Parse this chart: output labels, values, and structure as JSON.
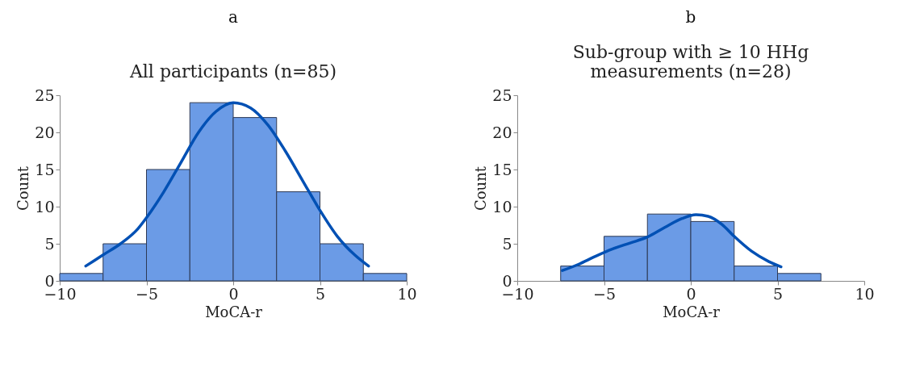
{
  "chart_data": [
    {
      "type": "histogram",
      "title": "All participants (n=85)",
      "xlabel": "MoCA-r",
      "ylabel": "Count",
      "annotations": [
        "a"
      ],
      "xlim": [
        -10,
        10
      ],
      "xticks": [
        -10,
        -5,
        0,
        5,
        10
      ],
      "ylim": [
        0,
        25
      ],
      "yticks": [
        0,
        5,
        10,
        15,
        20,
        25
      ],
      "grid": false,
      "legend": false,
      "series": [
        {
          "type": "histogram",
          "color": "#6b9be6",
          "bins": [
            -10,
            -7.5,
            -5,
            -2.5,
            0,
            2.5,
            5,
            7.5,
            10
          ],
          "values": [
            1,
            5,
            15,
            24,
            22,
            12,
            5,
            1
          ]
        },
        {
          "type": "line",
          "color": "#0050b4",
          "x": [
            -8.5,
            -7.5,
            -6.5,
            -5.5,
            -5,
            -4,
            -3,
            -2,
            -1,
            0,
            1,
            2,
            3,
            4,
            5,
            6,
            7,
            7.8
          ],
          "values": [
            2,
            3.5,
            5,
            7,
            8.5,
            12,
            16,
            20,
            22.8,
            24,
            23.3,
            21,
            17.5,
            13.5,
            9.5,
            6,
            3.5,
            2
          ]
        }
      ]
    },
    {
      "type": "histogram",
      "title": "Sub-group with ≥ 10 HHg measurements (n=28)",
      "xlabel": "MoCA-r",
      "ylabel": "Count",
      "annotations": [
        "b"
      ],
      "xlim": [
        -10,
        10
      ],
      "xticks": [
        -10,
        -5,
        0,
        5,
        10
      ],
      "ylim": [
        0,
        25
      ],
      "yticks": [
        0,
        5,
        10,
        15,
        20,
        25
      ],
      "grid": false,
      "legend": false,
      "series": [
        {
          "type": "histogram",
          "color": "#6b9be6",
          "bins": [
            -7.5,
            -5,
            -2.5,
            0,
            2.5,
            5,
            7.5
          ],
          "values": [
            2,
            6,
            9,
            8,
            2,
            1
          ]
        },
        {
          "type": "line",
          "color": "#0050b4",
          "x": [
            -7.4,
            -6.5,
            -5.5,
            -4.5,
            -3.5,
            -2.5,
            -1.5,
            -0.5,
            0.3,
            1,
            1.8,
            2.5,
            3.5,
            4.5,
            5.2
          ],
          "values": [
            1.4,
            2.2,
            3.3,
            4.3,
            5.1,
            5.9,
            7.2,
            8.4,
            8.9,
            8.7,
            7.6,
            6,
            4,
            2.6,
            1.9
          ]
        }
      ]
    }
  ]
}
